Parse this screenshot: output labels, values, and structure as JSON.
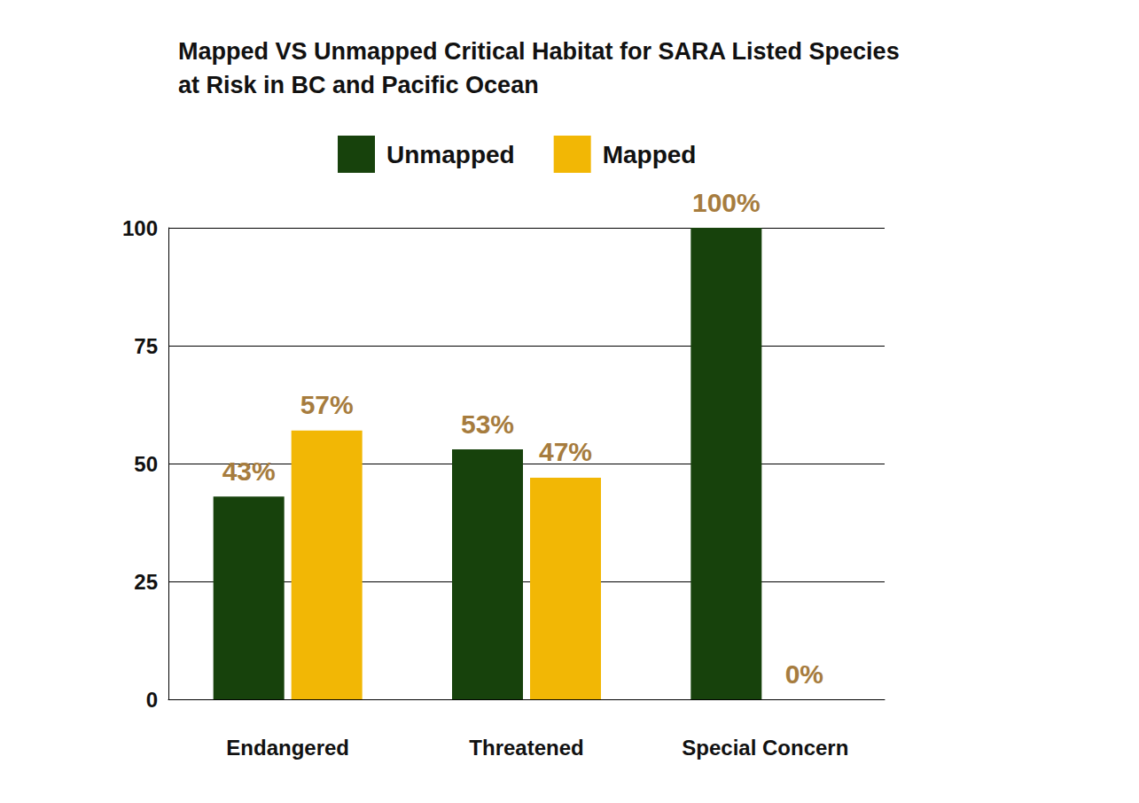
{
  "chart_data": {
    "type": "bar",
    "title": "Mapped VS Unmapped Critical Habitat for SARA Listed Species\nat Risk in BC and Pacific Ocean",
    "categories": [
      "Endangered",
      "Threatened",
      "Special Concern"
    ],
    "series": [
      {
        "name": "Unmapped",
        "color": "#17420c",
        "values": [
          43,
          53,
          100
        ],
        "value_labels": [
          "43%",
          "53%",
          "100%"
        ]
      },
      {
        "name": "Mapped",
        "color": "#f2b705",
        "values": [
          57,
          47,
          0
        ],
        "value_labels": [
          "57%",
          "47%",
          "0%"
        ]
      }
    ],
    "ylim": [
      0,
      100
    ],
    "yticks": [
      0,
      25,
      50,
      75,
      100
    ],
    "grid": true,
    "legend": "top",
    "data_labels": true
  }
}
